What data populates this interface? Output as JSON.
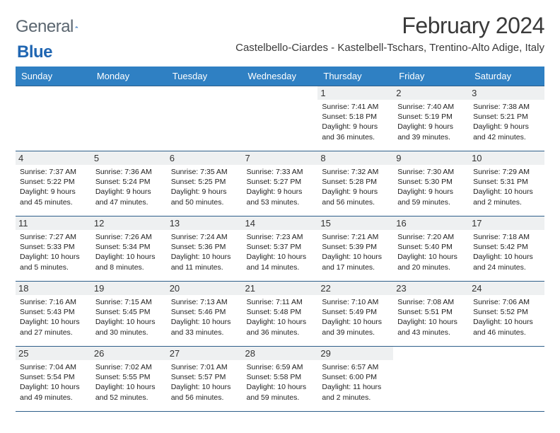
{
  "brand": {
    "word1": "General",
    "word2": "Blue"
  },
  "title": "February 2024",
  "location": "Castelbello-Ciardes - Kastelbell-Tschars, Trentino-Alto Adige, Italy",
  "colors": {
    "header_bg": "#2f80c3",
    "header_text": "#ffffff",
    "daynum_bg": "#eef0f1",
    "border": "#2f5f8a",
    "brand_gray": "#5b6670",
    "brand_blue": "#2066b2"
  },
  "weekdays": [
    "Sunday",
    "Monday",
    "Tuesday",
    "Wednesday",
    "Thursday",
    "Friday",
    "Saturday"
  ],
  "weeks": [
    [
      null,
      null,
      null,
      null,
      {
        "n": "1",
        "sr": "Sunrise: 7:41 AM",
        "ss": "Sunset: 5:18 PM",
        "dl": "Daylight: 9 hours and 36 minutes."
      },
      {
        "n": "2",
        "sr": "Sunrise: 7:40 AM",
        "ss": "Sunset: 5:19 PM",
        "dl": "Daylight: 9 hours and 39 minutes."
      },
      {
        "n": "3",
        "sr": "Sunrise: 7:38 AM",
        "ss": "Sunset: 5:21 PM",
        "dl": "Daylight: 9 hours and 42 minutes."
      }
    ],
    [
      {
        "n": "4",
        "sr": "Sunrise: 7:37 AM",
        "ss": "Sunset: 5:22 PM",
        "dl": "Daylight: 9 hours and 45 minutes."
      },
      {
        "n": "5",
        "sr": "Sunrise: 7:36 AM",
        "ss": "Sunset: 5:24 PM",
        "dl": "Daylight: 9 hours and 47 minutes."
      },
      {
        "n": "6",
        "sr": "Sunrise: 7:35 AM",
        "ss": "Sunset: 5:25 PM",
        "dl": "Daylight: 9 hours and 50 minutes."
      },
      {
        "n": "7",
        "sr": "Sunrise: 7:33 AM",
        "ss": "Sunset: 5:27 PM",
        "dl": "Daylight: 9 hours and 53 minutes."
      },
      {
        "n": "8",
        "sr": "Sunrise: 7:32 AM",
        "ss": "Sunset: 5:28 PM",
        "dl": "Daylight: 9 hours and 56 minutes."
      },
      {
        "n": "9",
        "sr": "Sunrise: 7:30 AM",
        "ss": "Sunset: 5:30 PM",
        "dl": "Daylight: 9 hours and 59 minutes."
      },
      {
        "n": "10",
        "sr": "Sunrise: 7:29 AM",
        "ss": "Sunset: 5:31 PM",
        "dl": "Daylight: 10 hours and 2 minutes."
      }
    ],
    [
      {
        "n": "11",
        "sr": "Sunrise: 7:27 AM",
        "ss": "Sunset: 5:33 PM",
        "dl": "Daylight: 10 hours and 5 minutes."
      },
      {
        "n": "12",
        "sr": "Sunrise: 7:26 AM",
        "ss": "Sunset: 5:34 PM",
        "dl": "Daylight: 10 hours and 8 minutes."
      },
      {
        "n": "13",
        "sr": "Sunrise: 7:24 AM",
        "ss": "Sunset: 5:36 PM",
        "dl": "Daylight: 10 hours and 11 minutes."
      },
      {
        "n": "14",
        "sr": "Sunrise: 7:23 AM",
        "ss": "Sunset: 5:37 PM",
        "dl": "Daylight: 10 hours and 14 minutes."
      },
      {
        "n": "15",
        "sr": "Sunrise: 7:21 AM",
        "ss": "Sunset: 5:39 PM",
        "dl": "Daylight: 10 hours and 17 minutes."
      },
      {
        "n": "16",
        "sr": "Sunrise: 7:20 AM",
        "ss": "Sunset: 5:40 PM",
        "dl": "Daylight: 10 hours and 20 minutes."
      },
      {
        "n": "17",
        "sr": "Sunrise: 7:18 AM",
        "ss": "Sunset: 5:42 PM",
        "dl": "Daylight: 10 hours and 24 minutes."
      }
    ],
    [
      {
        "n": "18",
        "sr": "Sunrise: 7:16 AM",
        "ss": "Sunset: 5:43 PM",
        "dl": "Daylight: 10 hours and 27 minutes."
      },
      {
        "n": "19",
        "sr": "Sunrise: 7:15 AM",
        "ss": "Sunset: 5:45 PM",
        "dl": "Daylight: 10 hours and 30 minutes."
      },
      {
        "n": "20",
        "sr": "Sunrise: 7:13 AM",
        "ss": "Sunset: 5:46 PM",
        "dl": "Daylight: 10 hours and 33 minutes."
      },
      {
        "n": "21",
        "sr": "Sunrise: 7:11 AM",
        "ss": "Sunset: 5:48 PM",
        "dl": "Daylight: 10 hours and 36 minutes."
      },
      {
        "n": "22",
        "sr": "Sunrise: 7:10 AM",
        "ss": "Sunset: 5:49 PM",
        "dl": "Daylight: 10 hours and 39 minutes."
      },
      {
        "n": "23",
        "sr": "Sunrise: 7:08 AM",
        "ss": "Sunset: 5:51 PM",
        "dl": "Daylight: 10 hours and 43 minutes."
      },
      {
        "n": "24",
        "sr": "Sunrise: 7:06 AM",
        "ss": "Sunset: 5:52 PM",
        "dl": "Daylight: 10 hours and 46 minutes."
      }
    ],
    [
      {
        "n": "25",
        "sr": "Sunrise: 7:04 AM",
        "ss": "Sunset: 5:54 PM",
        "dl": "Daylight: 10 hours and 49 minutes."
      },
      {
        "n": "26",
        "sr": "Sunrise: 7:02 AM",
        "ss": "Sunset: 5:55 PM",
        "dl": "Daylight: 10 hours and 52 minutes."
      },
      {
        "n": "27",
        "sr": "Sunrise: 7:01 AM",
        "ss": "Sunset: 5:57 PM",
        "dl": "Daylight: 10 hours and 56 minutes."
      },
      {
        "n": "28",
        "sr": "Sunrise: 6:59 AM",
        "ss": "Sunset: 5:58 PM",
        "dl": "Daylight: 10 hours and 59 minutes."
      },
      {
        "n": "29",
        "sr": "Sunrise: 6:57 AM",
        "ss": "Sunset: 6:00 PM",
        "dl": "Daylight: 11 hours and 2 minutes."
      },
      null,
      null
    ]
  ]
}
